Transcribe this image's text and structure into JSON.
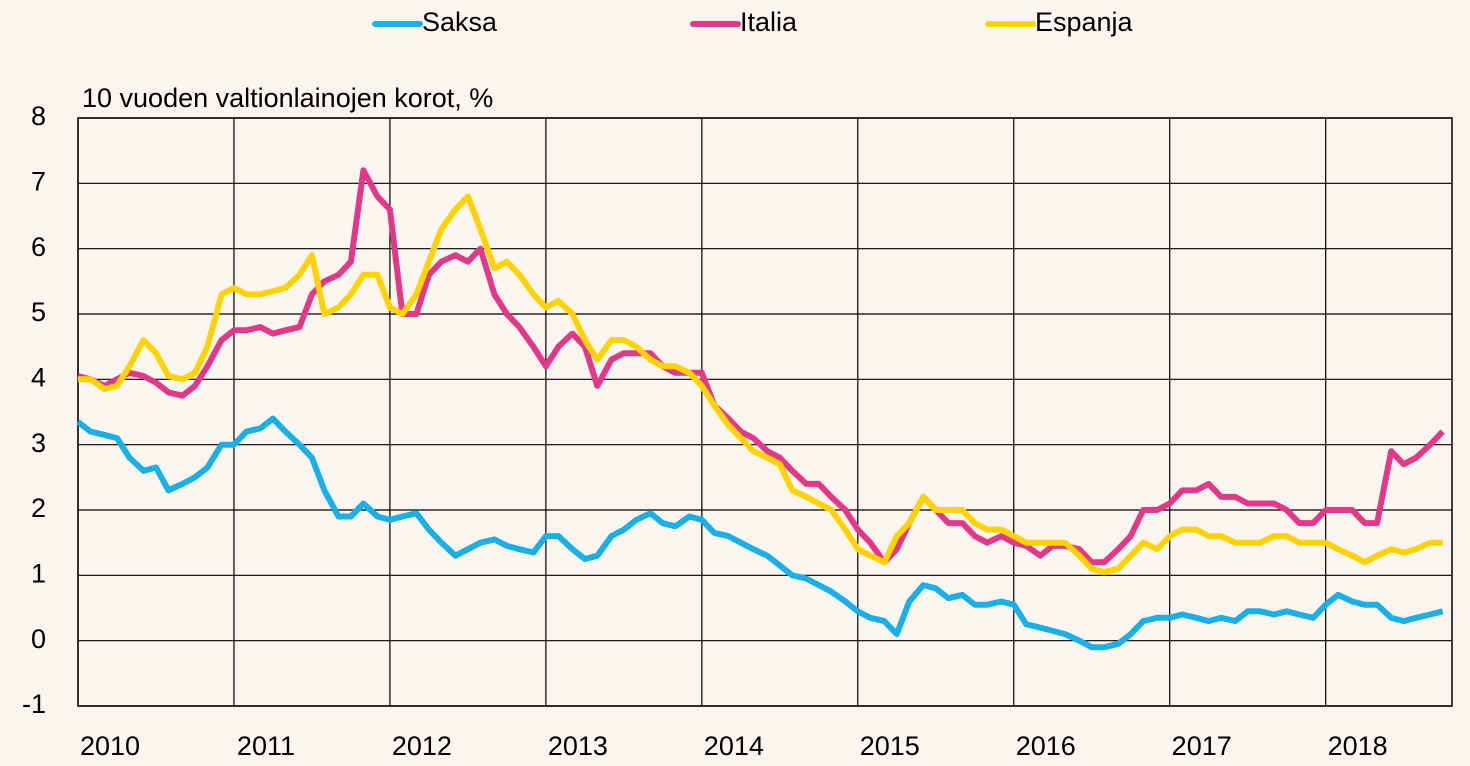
{
  "chart_data": {
    "type": "line",
    "title": "10 vuoden valtionlainojen korot, %",
    "x": [
      2010,
      2010.08,
      2010.17,
      2010.25,
      2010.33,
      2010.42,
      2010.5,
      2010.58,
      2010.67,
      2010.75,
      2010.83,
      2010.92,
      2011,
      2011.08,
      2011.17,
      2011.25,
      2011.33,
      2011.42,
      2011.5,
      2011.58,
      2011.67,
      2011.75,
      2011.83,
      2011.92,
      2012,
      2012.08,
      2012.17,
      2012.25,
      2012.33,
      2012.42,
      2012.5,
      2012.58,
      2012.67,
      2012.75,
      2012.83,
      2012.92,
      2013,
      2013.08,
      2013.17,
      2013.25,
      2013.33,
      2013.42,
      2013.5,
      2013.58,
      2013.67,
      2013.75,
      2013.83,
      2013.92,
      2014,
      2014.08,
      2014.17,
      2014.25,
      2014.33,
      2014.42,
      2014.5,
      2014.58,
      2014.67,
      2014.75,
      2014.83,
      2014.92,
      2015,
      2015.08,
      2015.17,
      2015.25,
      2015.33,
      2015.42,
      2015.5,
      2015.58,
      2015.67,
      2015.75,
      2015.83,
      2015.92,
      2016,
      2016.08,
      2016.17,
      2016.25,
      2016.33,
      2016.42,
      2016.5,
      2016.58,
      2016.67,
      2016.75,
      2016.83,
      2016.92,
      2017,
      2017.08,
      2017.17,
      2017.25,
      2017.33,
      2017.42,
      2017.5,
      2017.58,
      2017.67,
      2017.75,
      2017.83,
      2017.92,
      2018,
      2018.08,
      2018.17,
      2018.25,
      2018.33,
      2018.42,
      2018.5,
      2018.58,
      2018.67,
      2018.75
    ],
    "series": [
      {
        "name": "Saksa",
        "color": "#1ab0e6",
        "values": [
          3.35,
          3.2,
          3.15,
          3.1,
          2.8,
          2.6,
          2.65,
          2.3,
          2.4,
          2.5,
          2.65,
          3.0,
          3.0,
          3.2,
          3.25,
          3.4,
          3.2,
          3.0,
          2.8,
          2.3,
          1.9,
          1.9,
          2.1,
          1.9,
          1.85,
          1.9,
          1.95,
          1.7,
          1.5,
          1.3,
          1.4,
          1.5,
          1.55,
          1.45,
          1.4,
          1.35,
          1.6,
          1.6,
          1.4,
          1.25,
          1.3,
          1.6,
          1.7,
          1.85,
          1.95,
          1.8,
          1.75,
          1.9,
          1.85,
          1.65,
          1.6,
          1.5,
          1.4,
          1.3,
          1.15,
          1.0,
          0.95,
          0.85,
          0.75,
          0.6,
          0.45,
          0.35,
          0.3,
          0.1,
          0.6,
          0.85,
          0.8,
          0.65,
          0.7,
          0.55,
          0.55,
          0.6,
          0.55,
          0.25,
          0.2,
          0.15,
          0.1,
          0.0,
          -0.1,
          -0.1,
          -0.05,
          0.1,
          0.3,
          0.35,
          0.35,
          0.4,
          0.35,
          0.3,
          0.35,
          0.3,
          0.45,
          0.45,
          0.4,
          0.45,
          0.4,
          0.35,
          0.55,
          0.7,
          0.6,
          0.55,
          0.55,
          0.35,
          0.3,
          0.35,
          0.4,
          0.45
        ]
      },
      {
        "name": "Italia",
        "color": "#e2388a",
        "values": [
          4.05,
          4.0,
          3.9,
          4.0,
          4.1,
          4.05,
          3.95,
          3.8,
          3.75,
          3.9,
          4.2,
          4.6,
          4.75,
          4.75,
          4.8,
          4.7,
          4.75,
          4.8,
          5.3,
          5.5,
          5.6,
          5.8,
          7.2,
          6.8,
          6.6,
          5.0,
          5.0,
          5.6,
          5.8,
          5.9,
          5.8,
          6.0,
          5.3,
          5.0,
          4.8,
          4.5,
          4.2,
          4.5,
          4.7,
          4.5,
          3.9,
          4.3,
          4.4,
          4.4,
          4.4,
          4.2,
          4.1,
          4.1,
          4.1,
          3.6,
          3.4,
          3.2,
          3.1,
          2.9,
          2.8,
          2.6,
          2.4,
          2.4,
          2.2,
          2.0,
          1.7,
          1.5,
          1.2,
          1.4,
          1.8,
          2.2,
          2.0,
          1.8,
          1.8,
          1.6,
          1.5,
          1.6,
          1.5,
          1.45,
          1.3,
          1.45,
          1.45,
          1.4,
          1.2,
          1.2,
          1.4,
          1.6,
          2.0,
          2.0,
          2.1,
          2.3,
          2.3,
          2.4,
          2.2,
          2.2,
          2.1,
          2.1,
          2.1,
          2.0,
          1.8,
          1.8,
          2.0,
          2.0,
          2.0,
          1.8,
          1.8,
          2.9,
          2.7,
          2.8,
          3.0,
          3.2
        ]
      },
      {
        "name": "Espanja",
        "color": "#ffd200",
        "values": [
          4.0,
          4.0,
          3.85,
          3.9,
          4.2,
          4.6,
          4.4,
          4.05,
          4.0,
          4.1,
          4.5,
          5.3,
          5.4,
          5.3,
          5.3,
          5.35,
          5.4,
          5.6,
          5.9,
          5.0,
          5.1,
          5.3,
          5.6,
          5.6,
          5.1,
          5.0,
          5.3,
          5.8,
          6.3,
          6.6,
          6.8,
          6.3,
          5.7,
          5.8,
          5.6,
          5.3,
          5.1,
          5.2,
          5.0,
          4.6,
          4.3,
          4.6,
          4.6,
          4.5,
          4.3,
          4.2,
          4.2,
          4.1,
          3.9,
          3.6,
          3.3,
          3.1,
          2.9,
          2.8,
          2.7,
          2.3,
          2.2,
          2.1,
          2.0,
          1.7,
          1.4,
          1.3,
          1.2,
          1.6,
          1.8,
          2.2,
          2.0,
          2.0,
          2.0,
          1.8,
          1.7,
          1.7,
          1.6,
          1.5,
          1.5,
          1.5,
          1.5,
          1.3,
          1.1,
          1.05,
          1.1,
          1.3,
          1.5,
          1.4,
          1.6,
          1.7,
          1.7,
          1.6,
          1.6,
          1.5,
          1.5,
          1.5,
          1.6,
          1.6,
          1.5,
          1.5,
          1.5,
          1.4,
          1.3,
          1.2,
          1.3,
          1.4,
          1.35,
          1.4,
          1.5,
          1.5
        ]
      }
    ],
    "xlim": [
      2010,
      2018.81
    ],
    "xticks": [
      2010,
      2011,
      2012,
      2013,
      2014,
      2015,
      2016,
      2017,
      2018
    ],
    "ylim": [
      -1,
      8
    ],
    "yticks": [
      -1,
      0,
      1,
      2,
      3,
      4,
      5,
      6,
      7,
      8
    ],
    "grid": true,
    "legend": "top"
  }
}
